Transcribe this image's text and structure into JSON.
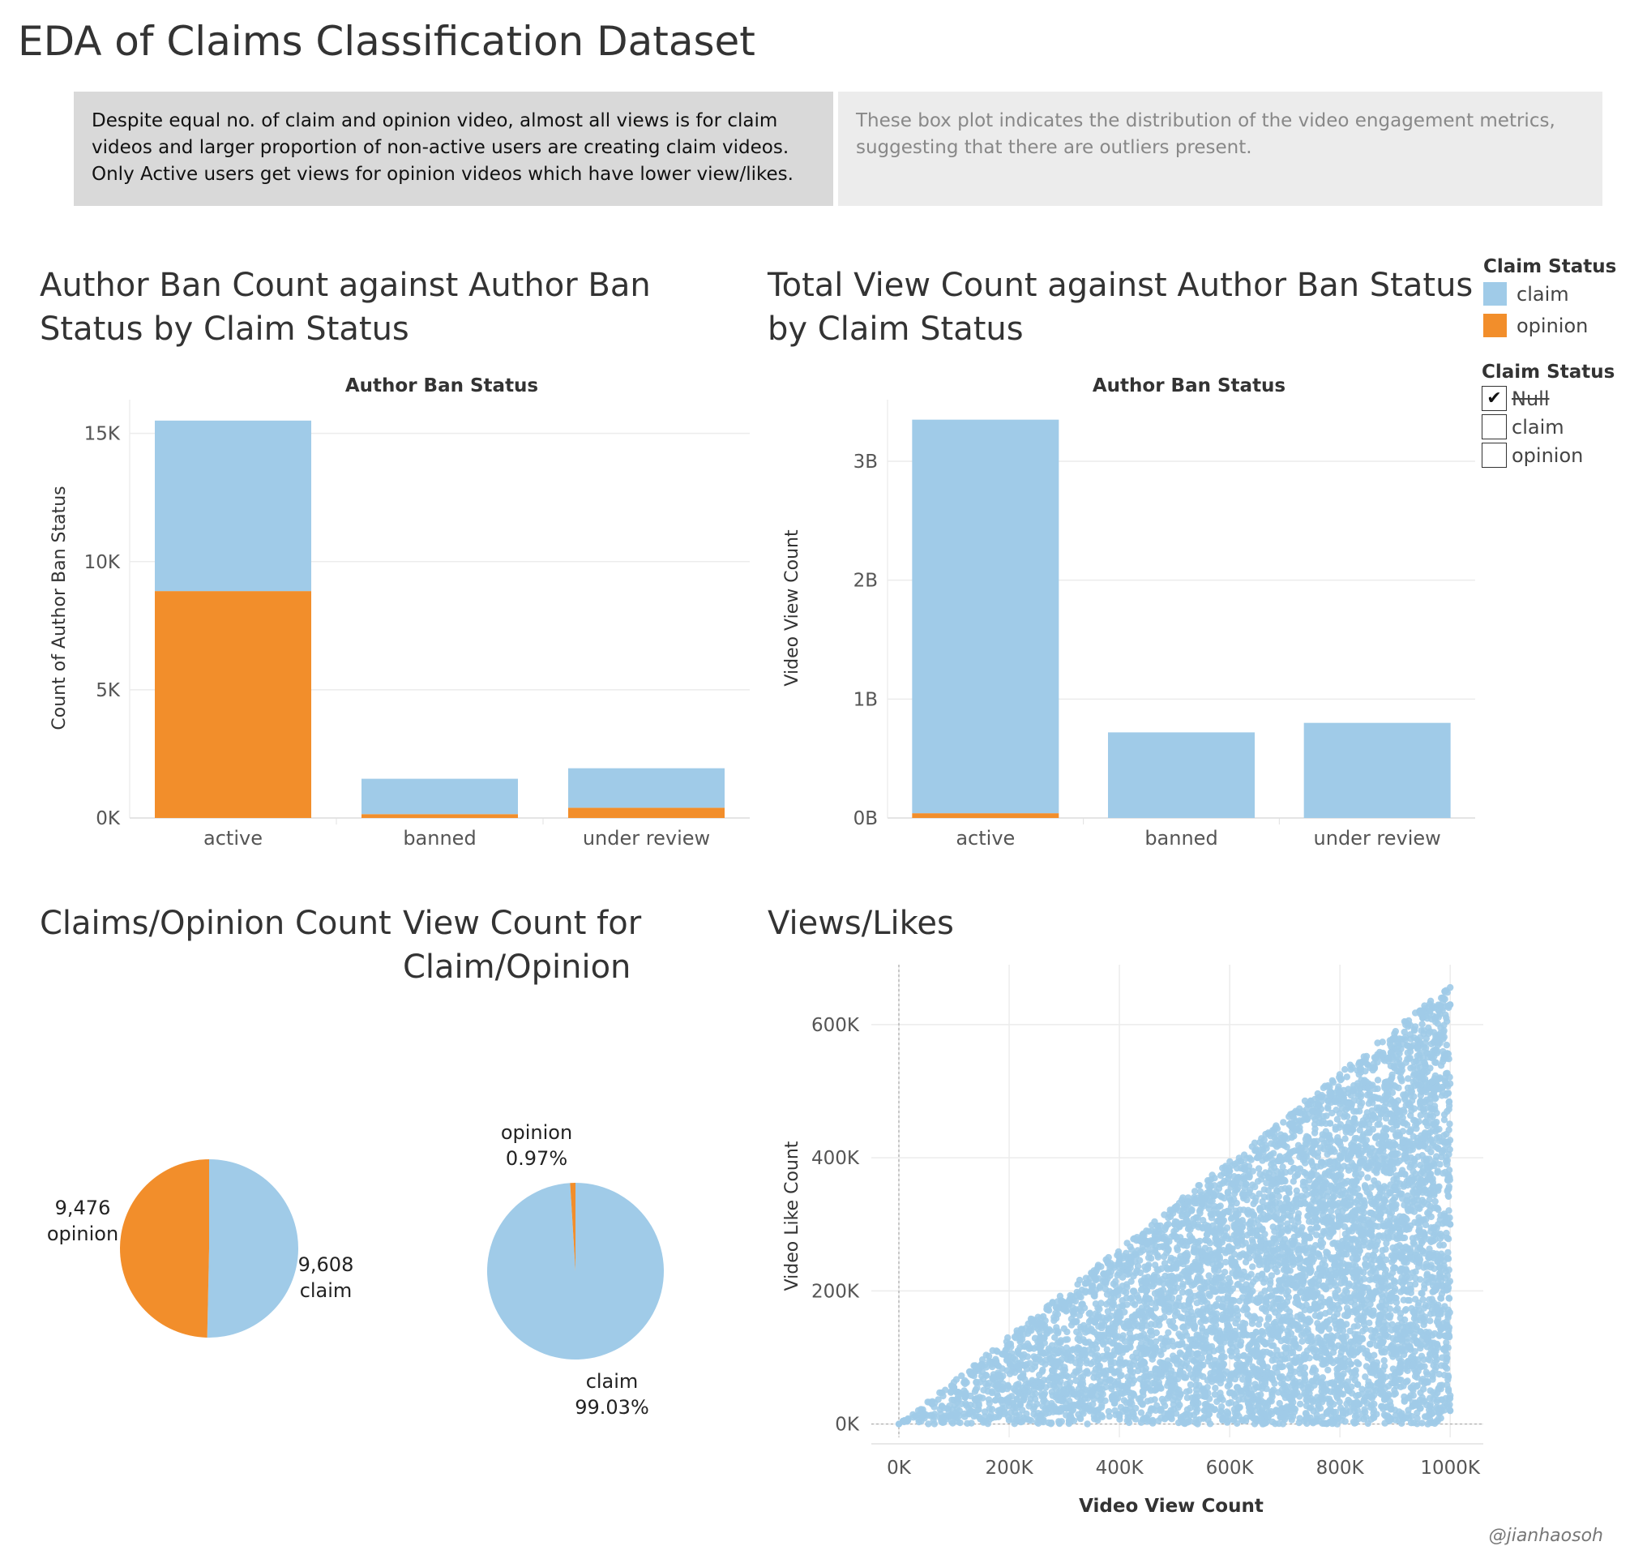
{
  "title": "EDA of Claims Classification Dataset",
  "notes": {
    "left": "Despite equal no. of claim and opinion video, almost all views is for claim videos and larger proportion of non-active users are creating claim videos. Only Active users get views for opinion videos which have lower view/likes.",
    "right": "These box plot indicates the distribution of the video engagement metrics, suggesting that there are outliers present."
  },
  "colors": {
    "claim": "#a0cbe8",
    "opinion": "#f28e2b"
  },
  "legend": {
    "title": "Claim Status",
    "items": [
      {
        "label": "claim",
        "color": "#a0cbe8"
      },
      {
        "label": "opinion",
        "color": "#f28e2b"
      }
    ]
  },
  "filter": {
    "title": "Claim Status",
    "items": [
      {
        "label": "Null",
        "checked": true,
        "struck": true
      },
      {
        "label": "claim",
        "checked": false,
        "struck": false
      },
      {
        "label": "opinion",
        "checked": false,
        "struck": false
      }
    ]
  },
  "credit": "@jianhaosoh",
  "chart_data": [
    {
      "type": "bar",
      "stacked": true,
      "title": "Author Ban Count against Author Ban Status by Claim Status",
      "xlabel": "Author Ban Status",
      "ylabel": "Count of Author Ban Status",
      "categories": [
        "active",
        "banned",
        "under review"
      ],
      "series": [
        {
          "name": "opinion",
          "values": [
            8850,
            150,
            400
          ]
        },
        {
          "name": "claim",
          "values": [
            6650,
            1380,
            1540
          ]
        }
      ],
      "ylim": [
        0,
        16000
      ],
      "yticks": [
        0,
        5000,
        10000,
        15000
      ],
      "ytick_labels": [
        "0K",
        "5K",
        "10K",
        "15K"
      ],
      "grid": true
    },
    {
      "type": "bar",
      "stacked": true,
      "title": "Total View Count against Author Ban Status by Claim Status",
      "xlabel": "Author Ban Status",
      "ylabel": "Video View Count",
      "categories": [
        "active",
        "banned",
        "under review"
      ],
      "series": [
        {
          "name": "opinion",
          "values": [
            0.04,
            0,
            0
          ]
        },
        {
          "name": "claim",
          "values": [
            3.31,
            0.72,
            0.8
          ]
        }
      ],
      "units": "billions",
      "ylim": [
        0,
        3.45
      ],
      "yticks": [
        0,
        1,
        2,
        3
      ],
      "ytick_labels": [
        "0B",
        "1B",
        "2B",
        "3B"
      ],
      "grid": true
    },
    {
      "type": "pie",
      "title": "Claims/Opinion Count",
      "slices": [
        {
          "name": "claim",
          "value": 9608,
          "label": [
            "9,608",
            "claim"
          ]
        },
        {
          "name": "opinion",
          "value": 9476,
          "label": [
            "9,476",
            "opinion"
          ]
        }
      ]
    },
    {
      "type": "pie",
      "title": "View Count for Claim/Opinion",
      "slices": [
        {
          "name": "claim",
          "value": 99.03,
          "label": [
            "claim",
            "99.03%"
          ]
        },
        {
          "name": "opinion",
          "value": 0.97,
          "label": [
            "opinion",
            "0.97%"
          ]
        }
      ]
    },
    {
      "type": "scatter",
      "title": "Views/Likes",
      "xlabel": "Video View Count",
      "ylabel": "Video Like Count",
      "xlim": [
        -50000,
        1060000
      ],
      "ylim": [
        -20000,
        690000
      ],
      "xticks": [
        0,
        200000,
        400000,
        600000,
        800000,
        1000000
      ],
      "xtick_labels": [
        "0K",
        "200K",
        "400K",
        "600K",
        "800K",
        "1000K"
      ],
      "yticks": [
        0,
        200000,
        400000,
        600000
      ],
      "ytick_labels": [
        "0K",
        "200K",
        "400K",
        "600K"
      ],
      "distribution": "points fill triangle 0 <= likes <= 0.66*views, views 0-1,000,000",
      "series": [
        {
          "name": "claim",
          "points": [
            [
              0,
              0
            ],
            [
              15000,
              4000
            ],
            [
              30000,
              12000
            ],
            [
              60000,
              30000
            ],
            [
              80000,
              10000
            ],
            [
              100000,
              55000
            ],
            [
              120000,
              40000
            ],
            [
              150000,
              90000
            ],
            [
              180000,
              60000
            ],
            [
              200000,
              120000
            ],
            [
              220000,
              30000
            ],
            [
              250000,
              150000
            ],
            [
              280000,
              90000
            ],
            [
              300000,
              180000
            ],
            [
              330000,
              60000
            ],
            [
              350000,
              200000
            ],
            [
              380000,
              140000
            ],
            [
              400000,
              250000
            ],
            [
              420000,
              80000
            ],
            [
              450000,
              270000
            ],
            [
              480000,
              180000
            ],
            [
              500000,
              300000
            ],
            [
              520000,
              100000
            ],
            [
              550000,
              330000
            ],
            [
              580000,
              220000
            ],
            [
              600000,
              380000
            ],
            [
              620000,
              50000
            ],
            [
              650000,
              400000
            ],
            [
              680000,
              260000
            ],
            [
              700000,
              430000
            ],
            [
              720000,
              150000
            ],
            [
              750000,
              470000
            ],
            [
              780000,
              330000
            ],
            [
              800000,
              500000
            ],
            [
              820000,
              90000
            ],
            [
              850000,
              540000
            ],
            [
              880000,
              380000
            ],
            [
              900000,
              580000
            ],
            [
              920000,
              200000
            ],
            [
              950000,
              610000
            ],
            [
              970000,
              450000
            ],
            [
              990000,
              650000
            ],
            [
              1000000,
              300000
            ],
            [
              1000000,
              20000
            ],
            [
              1000000,
              630000
            ]
          ]
        }
      ]
    }
  ]
}
